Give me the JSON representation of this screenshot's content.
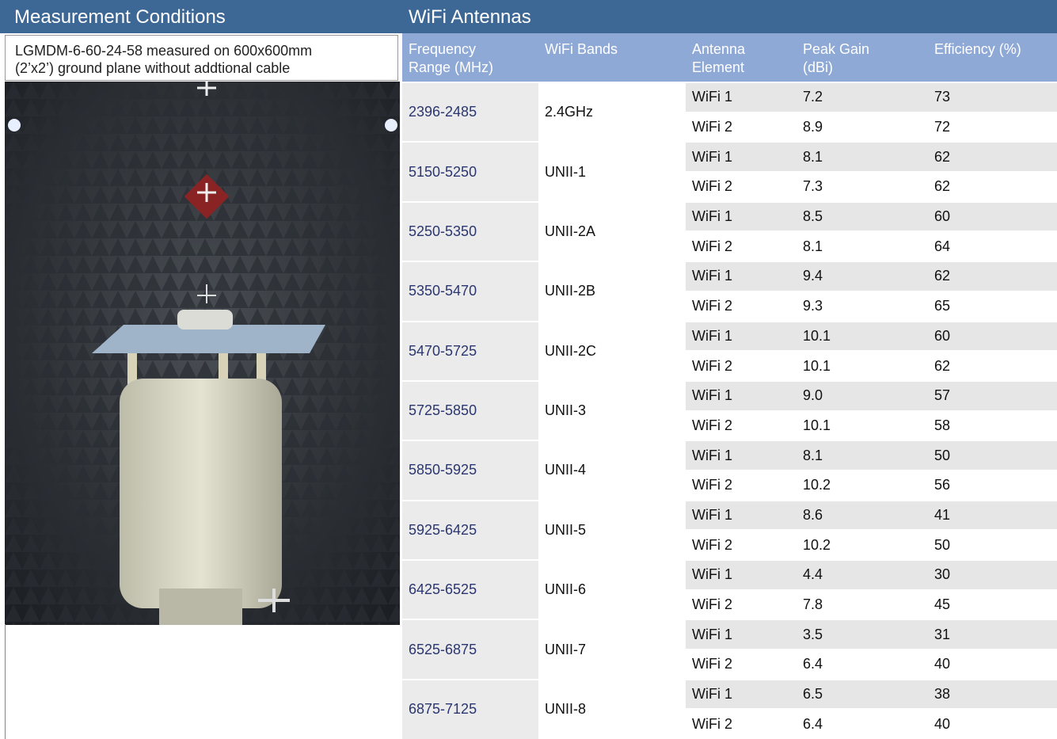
{
  "header": {
    "left_title": "Measurement Conditions",
    "right_title": "WiFi Antennas"
  },
  "conditions": [
    "LGMDM-6-60-24-58 measured on 600x600mm",
    "(2’x2’) ground plane without addtional cable"
  ],
  "table": {
    "columns": [
      [
        "Frequency",
        "Range (MHz)"
      ],
      [
        "WiFi Bands"
      ],
      [
        "Antenna",
        "Element"
      ],
      [
        "Peak Gain",
        "(dBi)"
      ],
      [
        "Efficiency (%)"
      ]
    ],
    "rows": [
      {
        "frequency": "2396-2485",
        "band": "2.4GHz",
        "antennas": [
          {
            "element": "WiFi 1",
            "gain": "7.2",
            "efficiency": 73
          },
          {
            "element": "WiFi 2",
            "gain": "8.9",
            "efficiency": 72
          }
        ]
      },
      {
        "frequency": "5150-5250",
        "band": "UNII-1",
        "antennas": [
          {
            "element": "WiFi 1",
            "gain": "8.1",
            "efficiency": 62
          },
          {
            "element": "WiFi 2",
            "gain": "7.3",
            "efficiency": 62
          }
        ]
      },
      {
        "frequency": "5250-5350",
        "band": "UNII-2A",
        "antennas": [
          {
            "element": "WiFi 1",
            "gain": "8.5",
            "efficiency": 60
          },
          {
            "element": "WiFi 2",
            "gain": "8.1",
            "efficiency": 64
          }
        ]
      },
      {
        "frequency": "5350-5470",
        "band": "UNII-2B",
        "antennas": [
          {
            "element": "WiFi 1",
            "gain": "9.4",
            "efficiency": 62
          },
          {
            "element": "WiFi 2",
            "gain": "9.3",
            "efficiency": 65
          }
        ]
      },
      {
        "frequency": "5470-5725",
        "band": "UNII-2C",
        "antennas": [
          {
            "element": "WiFi 1",
            "gain": "10.1",
            "efficiency": 60
          },
          {
            "element": "WiFi 2",
            "gain": "10.1",
            "efficiency": 62
          }
        ]
      },
      {
        "frequency": "5725-5850",
        "band": "UNII-3",
        "antennas": [
          {
            "element": "WiFi 1",
            "gain": "9.0",
            "efficiency": 57
          },
          {
            "element": "WiFi 2",
            "gain": "10.1",
            "efficiency": 58
          }
        ]
      },
      {
        "frequency": "5850-5925",
        "band": "UNII-4",
        "antennas": [
          {
            "element": "WiFi 1",
            "gain": "8.1",
            "efficiency": 50
          },
          {
            "element": "WiFi 2",
            "gain": "10.2",
            "efficiency": 56
          }
        ]
      },
      {
        "frequency": "5925-6425",
        "band": "UNII-5",
        "antennas": [
          {
            "element": "WiFi 1",
            "gain": "8.6",
            "efficiency": 41
          },
          {
            "element": "WiFi 2",
            "gain": "10.2",
            "efficiency": 50
          }
        ]
      },
      {
        "frequency": "6425-6525",
        "band": "UNII-6",
        "antennas": [
          {
            "element": "WiFi 1",
            "gain": "4.4",
            "efficiency": 30
          },
          {
            "element": "WiFi 2",
            "gain": "7.8",
            "efficiency": 45
          }
        ]
      },
      {
        "frequency": "6525-6875",
        "band": "UNII-7",
        "antennas": [
          {
            "element": "WiFi 1",
            "gain": "3.5",
            "efficiency": 31
          },
          {
            "element": "WiFi 2",
            "gain": "6.4",
            "efficiency": 40
          }
        ]
      },
      {
        "frequency": "6875-7125",
        "band": "UNII-8",
        "antennas": [
          {
            "element": "WiFi 1",
            "gain": "6.5",
            "efficiency": 38
          },
          {
            "element": "WiFi 2",
            "gain": "6.4",
            "efficiency": 40
          }
        ]
      }
    ]
  }
}
